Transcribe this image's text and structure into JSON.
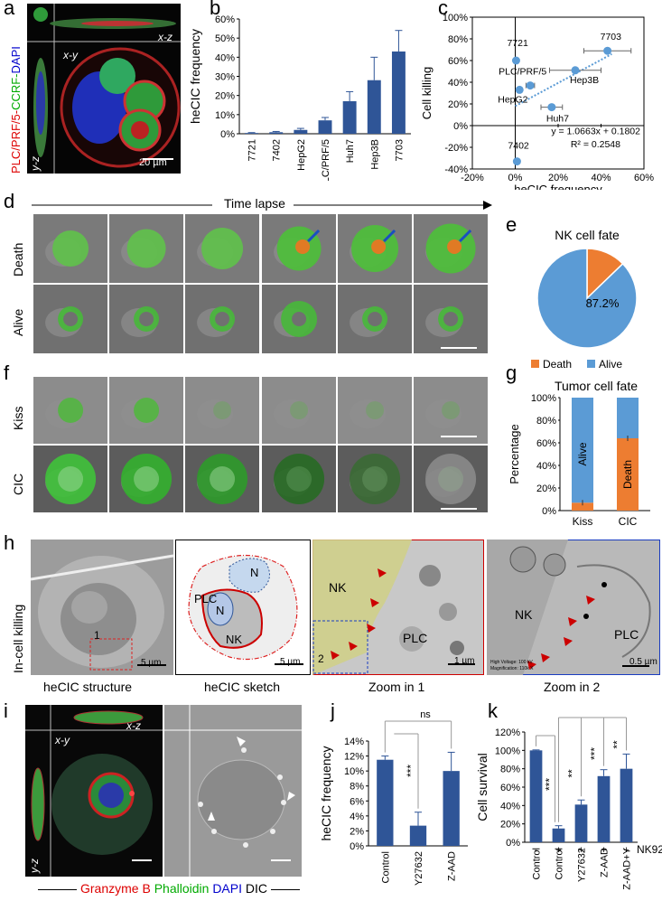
{
  "panels": {
    "a": {
      "letter": "a",
      "channels": {
        "red": "PLC/PRF/5-",
        "green": "CCRF-",
        "blue": "DAPI"
      },
      "xz": "x-z",
      "xy": "x-y",
      "yz": "y-z",
      "scale": "20 µm"
    },
    "b": {
      "letter": "b"
    },
    "c": {
      "letter": "c"
    },
    "d": {
      "letter": "d",
      "timelapse": "Time lapse",
      "rows": [
        "Death",
        "Alive"
      ]
    },
    "e": {
      "letter": "e"
    },
    "f": {
      "letter": "f",
      "rows": [
        "Kiss",
        "CIC"
      ]
    },
    "g": {
      "letter": "g"
    },
    "h": {
      "letter": "h",
      "row_label": "In-cell killing",
      "captions": [
        "heCIC structure",
        "heCIC sketch",
        "Zoom in 1",
        "Zoom in 2"
      ],
      "sketch": {
        "plc": "PLC",
        "n1": "N",
        "n2": "N",
        "nk": "NK",
        "scale": "5 µm"
      },
      "img1": {
        "scale": "5 µm",
        "box": "1"
      },
      "zoom1": {
        "nk": "NK",
        "plc": "PLC",
        "box": "2",
        "scale": "1 µm"
      },
      "zoom2": {
        "nk": "NK",
        "plc": "PLC",
        "scale": "0.5 µm",
        "meta1": "High Voltage: 100 kV",
        "meta2": "Magnification: 110k X"
      }
    },
    "i": {
      "letter": "i",
      "xz": "x-z",
      "xy": "x-y",
      "yz": "y-z",
      "legend": {
        "red": "Granzyme B",
        "green": "Phalloidin",
        "blue": "DAPI",
        "gray": "DIC"
      }
    },
    "j": {
      "letter": "j",
      "sig_ns": "ns",
      "sig_star": "***"
    },
    "k": {
      "letter": "k",
      "nk_label": "NK92",
      "nk_marks": [
        "-",
        "+",
        "+",
        "+",
        "+"
      ],
      "sig": [
        "***",
        "**",
        "***",
        "**"
      ]
    }
  },
  "colors": {
    "bar": "#2f5597",
    "orange": "#ed7d31",
    "blue": "#5b9bd5",
    "scatter": "#5b9bd5"
  },
  "chart_data": [
    {
      "id": "b",
      "type": "bar",
      "categories": [
        "7721",
        "7402",
        "HepG2",
        "PLC/PRF/5",
        "Huh7",
        "Hep3B",
        "7703"
      ],
      "values": [
        0.4,
        0.8,
        2,
        7,
        17,
        28,
        43
      ],
      "errors": [
        0.2,
        0.4,
        0.8,
        1.5,
        5,
        12,
        11
      ],
      "ylabel": "heCIC frequency",
      "ylim": [
        0,
        60
      ],
      "yticks": [
        "0%",
        "10%",
        "20%",
        "30%",
        "40%",
        "50%",
        "60%"
      ]
    },
    {
      "id": "c",
      "type": "scatter",
      "xlabel": "heCIC frequency",
      "ylabel": "Cell killing",
      "xlim": [
        -20,
        60
      ],
      "ylim": [
        -40,
        100
      ],
      "xticks": [
        "-20%",
        "0%",
        "20%",
        "40%",
        "60%"
      ],
      "yticks": [
        "-40%",
        "-20%",
        "0%",
        "20%",
        "40%",
        "60%",
        "80%",
        "100%"
      ],
      "points": [
        {
          "label": "7721",
          "x": 0.4,
          "y": 60
        },
        {
          "label": "PLC/PRF/5",
          "x": 7,
          "y": 37
        },
        {
          "label": "HepG2",
          "x": 2,
          "y": 33
        },
        {
          "label": "Hep3B",
          "x": 28,
          "y": 51
        },
        {
          "label": "Huh7",
          "x": 17,
          "y": 17
        },
        {
          "label": "7703",
          "x": 43,
          "y": 69
        },
        {
          "label": "7402",
          "x": 0.8,
          "y": -33
        }
      ],
      "equation": "y = 1.0663x + 0.1802",
      "r2": "R² = 0.2548"
    },
    {
      "id": "e",
      "type": "pie",
      "title": "NK cell fate",
      "slices": [
        {
          "name": "Death",
          "value": 12.8,
          "label": "12.8%"
        },
        {
          "name": "Alive",
          "value": 87.2,
          "label": "87.2%"
        }
      ],
      "legend": [
        "Death",
        "Alive"
      ]
    },
    {
      "id": "g",
      "type": "bar",
      "title": "Tumor cell fate",
      "ylabel": "Percentage",
      "categories": [
        "Kiss",
        "CIC"
      ],
      "series": [
        {
          "name": "Death",
          "values": [
            7,
            64
          ]
        },
        {
          "name": "Alive",
          "values": [
            93,
            36
          ]
        }
      ],
      "ylim": [
        0,
        100
      ],
      "yticks": [
        "0%",
        "20%",
        "40%",
        "60%",
        "80%",
        "100%"
      ],
      "inbar": [
        "Alive",
        "Death"
      ]
    },
    {
      "id": "j",
      "type": "bar",
      "ylabel": "heCIC frequency",
      "categories": [
        "Control",
        "Y27632",
        "Z-AAD"
      ],
      "values": [
        11.5,
        2.7,
        10
      ],
      "errors": [
        0.5,
        1.8,
        2.5
      ],
      "ylim": [
        0,
        14
      ],
      "yticks": [
        "0%",
        "2%",
        "4%",
        "6%",
        "8%",
        "10%",
        "12%",
        "14%"
      ]
    },
    {
      "id": "k",
      "type": "bar",
      "ylabel": "Cell survival",
      "categories": [
        "Control",
        "Control",
        "Y27632",
        "Z-AAD",
        "Z-AAD+Y"
      ],
      "values": [
        100,
        15,
        41,
        72,
        80
      ],
      "errors": [
        0.5,
        3,
        5,
        7,
        16
      ],
      "ylim": [
        0,
        120
      ],
      "yticks": [
        "0%",
        "20%",
        "40%",
        "60%",
        "80%",
        "100%",
        "120%"
      ]
    }
  ]
}
